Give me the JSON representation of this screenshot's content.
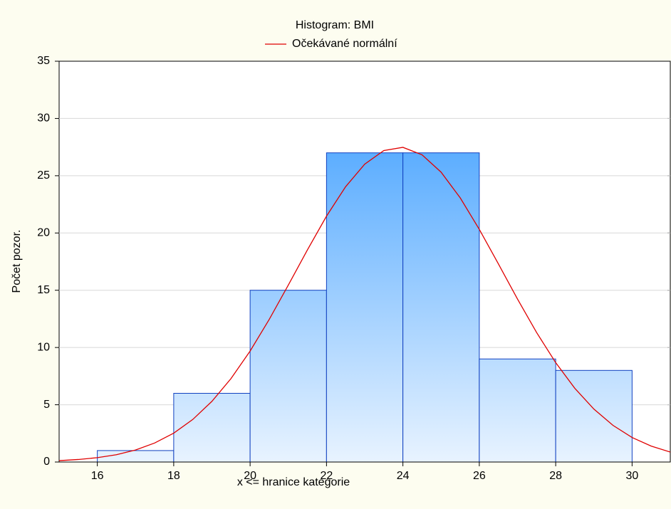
{
  "chart_data": {
    "type": "histogram",
    "title": "Histogram: BMI",
    "x_label": "x <= hranice kategorie",
    "y_label": "Počet pozor.",
    "bins": [
      16,
      18,
      20,
      22,
      24,
      26,
      28,
      30
    ],
    "values": [
      1,
      6,
      15,
      27,
      27,
      9,
      8
    ],
    "color": "#3399ff",
    "edge_color": "#1040c0",
    "xlim": [
      15,
      31
    ],
    "xticks": [
      16,
      18,
      20,
      22,
      24,
      26,
      28,
      30
    ],
    "ylim": [
      0,
      35
    ],
    "yticks": [
      0,
      5,
      10,
      15,
      20,
      25,
      30,
      35
    ],
    "grid": true,
    "legend": "top",
    "series": [
      {
        "name": "Očekávané normální",
        "type": "line",
        "color": "#e00000",
        "x": [
          15,
          15.5,
          16,
          16.5,
          17,
          17.5,
          18,
          18.5,
          19,
          19.5,
          20,
          20.5,
          21,
          21.5,
          22,
          22.5,
          23,
          23.5,
          24,
          24.5,
          25,
          25.5,
          26,
          26.5,
          27,
          27.5,
          28,
          28.5,
          29,
          29.5,
          30,
          30.5,
          31
        ],
        "values": [
          0.12,
          0.22,
          0.38,
          0.64,
          1.05,
          1.66,
          2.52,
          3.72,
          5.3,
          7.29,
          9.69,
          12.45,
          15.45,
          18.52,
          21.47,
          24.04,
          26.01,
          27.2,
          27.48,
          26.83,
          25.31,
          23.07,
          20.32,
          17.3,
          14.23,
          11.31,
          8.68,
          6.44,
          4.62,
          3.2,
          2.14,
          1.39,
          0.87
        ]
      }
    ]
  }
}
